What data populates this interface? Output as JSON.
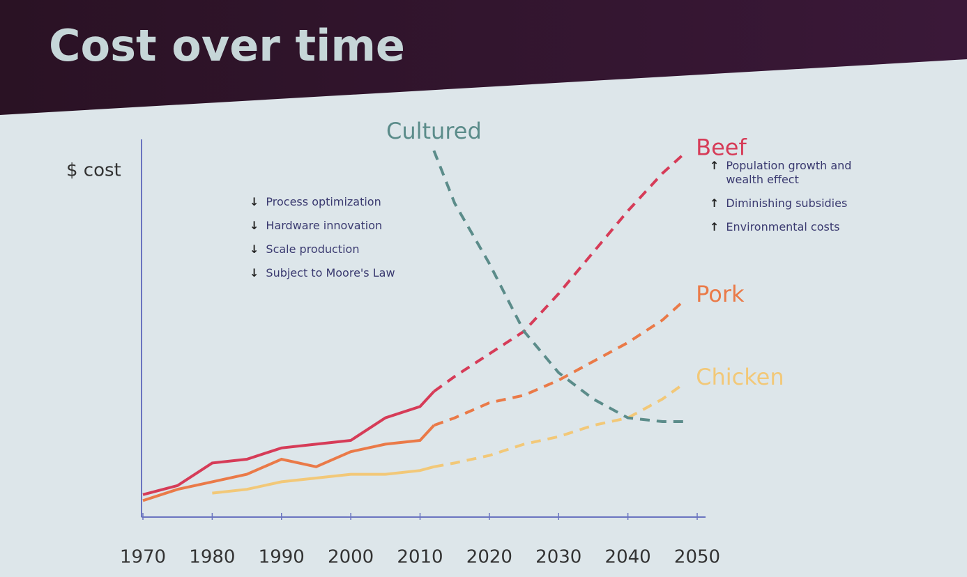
{
  "chart_data": {
    "type": "line",
    "title": "Cost over time",
    "y_label": "$ cost",
    "x": [
      1970,
      1975,
      1980,
      1985,
      1990,
      1995,
      2000,
      2005,
      2010,
      2012,
      2015,
      2020,
      2025,
      2030,
      2035,
      2040,
      2045,
      2048
    ],
    "xlim": [
      1970,
      2050
    ],
    "xticks": [
      1970,
      1980,
      1990,
      2000,
      2010,
      2020,
      2030,
      2040,
      2050
    ],
    "ylim": [
      0,
      100
    ],
    "grid": false,
    "series": [
      {
        "color": "#d63c58",
        "line_style": "solid",
        "values": [
          5.6,
          8,
          14,
          15,
          18,
          19,
          20,
          26,
          29,
          33,
          null,
          null,
          null,
          null,
          null,
          null,
          null,
          null
        ]
      },
      {
        "name": "Beef",
        "color": "#d63c58",
        "line_style": "dashed",
        "values": [
          null,
          null,
          null,
          null,
          null,
          null,
          null,
          null,
          null,
          33,
          37,
          43,
          49,
          59,
          70,
          81,
          91,
          96
        ]
      },
      {
        "color": "#ea7a48",
        "line_style": "solid",
        "values": [
          4,
          7,
          9,
          11,
          15,
          13,
          17,
          19,
          20,
          24,
          null,
          null,
          null,
          null,
          null,
          null,
          null,
          null
        ]
      },
      {
        "name": "Pork",
        "color": "#ea7a48",
        "line_style": "dashed",
        "values": [
          null,
          null,
          null,
          null,
          null,
          null,
          null,
          null,
          null,
          24,
          26,
          30,
          32,
          36,
          41,
          46,
          52,
          57
        ]
      },
      {
        "color": "#f2c878",
        "line_style": "solid",
        "values": [
          null,
          null,
          6,
          7,
          9,
          10,
          11,
          11,
          12,
          13,
          null,
          null,
          null,
          null,
          null,
          null,
          null,
          null
        ]
      },
      {
        "name": "Chicken",
        "color": "#f2c878",
        "line_style": "dashed",
        "values": [
          null,
          null,
          null,
          null,
          null,
          null,
          null,
          null,
          null,
          13,
          14,
          16,
          19,
          21,
          24,
          26,
          31,
          35
        ]
      },
      {
        "name": "Cultured",
        "color": "#5b8c8a",
        "line_style": "dashed",
        "values": [
          null,
          null,
          null,
          null,
          null,
          null,
          null,
          null,
          null,
          97,
          83,
          67,
          49,
          38,
          31,
          26,
          25,
          25
        ]
      }
    ],
    "annotations_left": [
      "Process optimization",
      "Hardware innovation",
      "Scale production",
      "Subject to Moore's Law"
    ],
    "annotations_right": [
      "Population growth and wealth effect",
      "Diminishing subsidies",
      "Environmental costs"
    ]
  }
}
